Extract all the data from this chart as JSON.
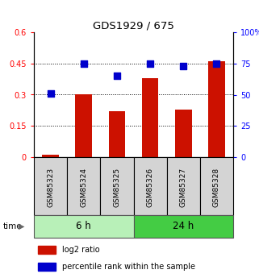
{
  "title": "GDS1929 / 675",
  "categories": [
    "GSM85323",
    "GSM85324",
    "GSM85325",
    "GSM85326",
    "GSM85327",
    "GSM85328"
  ],
  "log2_ratio": [
    0.01,
    0.3,
    0.22,
    0.38,
    0.23,
    0.46
  ],
  "percentile_rank": [
    51,
    75,
    65,
    75,
    73,
    75
  ],
  "groups": [
    {
      "label": "6 h",
      "indices": [
        0,
        1,
        2
      ],
      "color": "#b8f0b8"
    },
    {
      "label": "24 h",
      "indices": [
        3,
        4,
        5
      ],
      "color": "#44cc44"
    }
  ],
  "bar_color": "#cc1100",
  "dot_color": "#0000cc",
  "ylim_left": [
    0,
    0.6
  ],
  "ylim_right": [
    0,
    100
  ],
  "yticks_left": [
    0,
    0.15,
    0.3,
    0.45,
    0.6
  ],
  "yticks_right": [
    0,
    25,
    50,
    75,
    100
  ],
  "ytick_labels_left": [
    "0",
    "0.15",
    "0.3",
    "0.45",
    "0.6"
  ],
  "ytick_labels_right": [
    "0",
    "25",
    "50",
    "75",
    "100%"
  ],
  "hlines": [
    0.15,
    0.3,
    0.45
  ],
  "legend_items": [
    {
      "label": "log2 ratio",
      "color": "#cc1100"
    },
    {
      "label": "percentile rank within the sample",
      "color": "#0000cc"
    }
  ],
  "bar_width": 0.5,
  "dot_size": 30
}
